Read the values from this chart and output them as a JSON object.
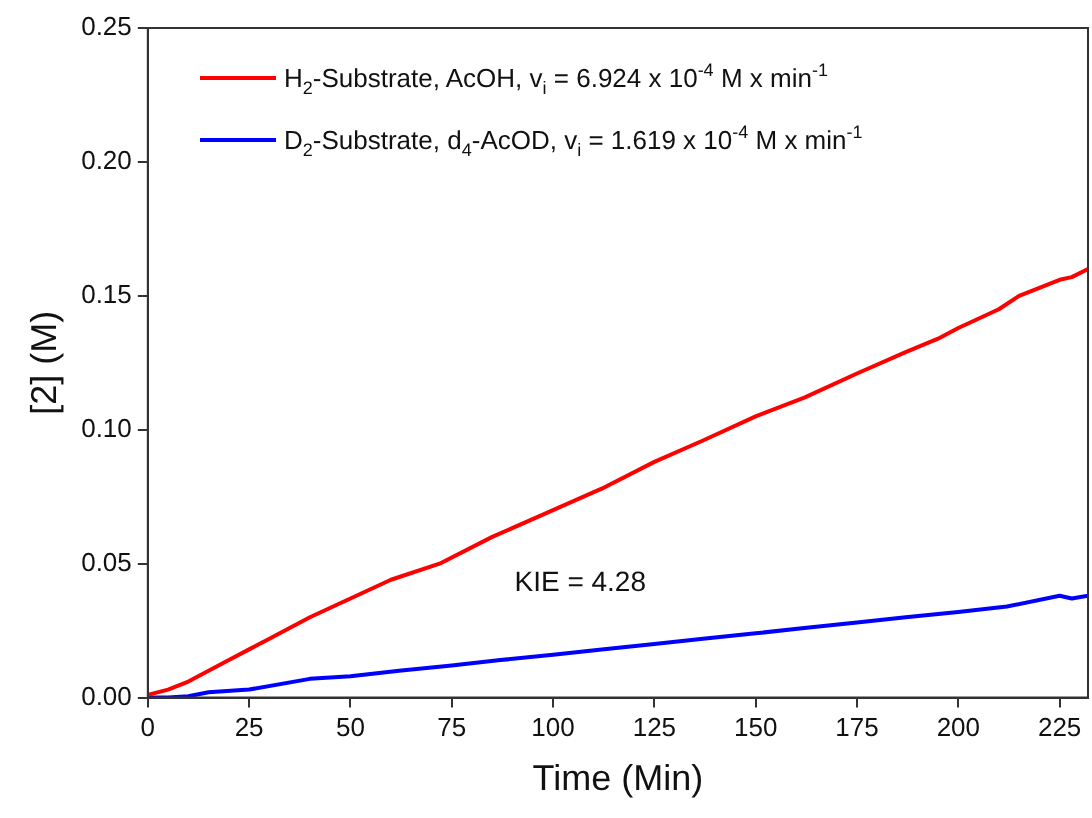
{
  "chart_data": {
    "type": "line",
    "xlabel": "Time (Min)",
    "ylabel": "[2] (M)",
    "xlim": [
      0,
      232
    ],
    "ylim": [
      0,
      0.25
    ],
    "xticks": [
      0,
      25,
      50,
      75,
      100,
      125,
      150,
      175,
      200,
      225
    ],
    "yticks": [
      {
        "value": 0,
        "label": "0.00"
      },
      {
        "value": 0.05,
        "label": "0.05"
      },
      {
        "value": 0.1,
        "label": "0.10"
      },
      {
        "value": 0.15,
        "label": "0.15"
      },
      {
        "value": 0.2,
        "label": "0.20"
      },
      {
        "value": 0.25,
        "label": "0.25"
      }
    ],
    "legend": "top left",
    "grid": false,
    "marker": "none",
    "line_style": "solid",
    "annotations": [
      "KIE = 4.28"
    ],
    "series": [
      {
        "name": "H$_{2}$-Substrate, AcOH, v$_{i}$ = 6.924 x 10$^{-4}$ M x min$^{-1}$",
        "color": "#ff0000",
        "x": [
          0,
          5,
          10,
          15,
          20,
          25,
          30,
          40,
          50,
          60,
          72,
          85,
          100,
          112,
          125,
          137,
          150,
          162,
          175,
          187,
          195,
          200,
          210,
          215,
          220,
          225,
          228,
          232
        ],
        "values": [
          0.001,
          0.003,
          0.006,
          0.01,
          0.014,
          0.018,
          0.022,
          0.03,
          0.037,
          0.044,
          0.05,
          0.06,
          0.07,
          0.078,
          0.088,
          0.096,
          0.105,
          0.112,
          0.121,
          0.129,
          0.134,
          0.138,
          0.145,
          0.15,
          0.153,
          0.156,
          0.157,
          0.16
        ]
      },
      {
        "name": "D$_{2}$-Substrate, d$_{4}$-AcOD, v$_{i}$ = 1.619 x 10$^{-4}$ M x min$^{-1}$",
        "color": "#0000ff",
        "x": [
          0,
          5,
          10,
          15,
          25,
          40,
          50,
          62,
          75,
          87,
          100,
          112,
          125,
          137,
          150,
          162,
          175,
          187,
          200,
          212,
          225,
          228,
          232
        ],
        "values": [
          0,
          0,
          0.0005,
          0.002,
          0.003,
          0.007,
          0.008,
          0.01,
          0.012,
          0.014,
          0.016,
          0.018,
          0.02,
          0.022,
          0.024,
          0.026,
          0.028,
          0.03,
          0.032,
          0.034,
          0.038,
          0.037,
          0.038
        ]
      }
    ]
  }
}
